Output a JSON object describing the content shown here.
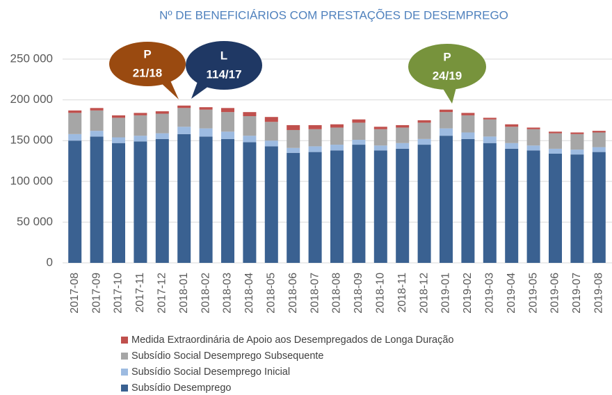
{
  "chart_data": {
    "type": "bar",
    "stacked": true,
    "title": "Nº DE BENEFICIÁRIOS COM PRESTAÇÕES DE DESEMPREGO",
    "categories": [
      "2017-08",
      "2017-09",
      "2017-10",
      "2017-11",
      "2017-12",
      "2018-01",
      "2018-02",
      "2018-03",
      "2018-04",
      "2018-05",
      "2018-06",
      "2018-07",
      "2018-08",
      "2018-09",
      "2018-10",
      "2018-11",
      "2018-12",
      "2019-01",
      "2019-02",
      "2019-03",
      "2019-04",
      "2019-05",
      "2019-06",
      "2019-07",
      "2019-08"
    ],
    "series": [
      {
        "name": "Subsídio Desemprego",
        "color": "#3a6191",
        "values": [
          150000,
          155000,
          147000,
          149000,
          152000,
          158000,
          155000,
          152000,
          148000,
          143000,
          135000,
          136000,
          138000,
          145000,
          138000,
          140000,
          145000,
          156000,
          152000,
          147000,
          140000,
          138000,
          134000,
          133000,
          136000
        ]
      },
      {
        "name": "Subsídio Social Desemprego Inicial",
        "color": "#9dbbe1",
        "values": [
          8000,
          7000,
          7000,
          7000,
          7000,
          9000,
          10000,
          9000,
          8000,
          7000,
          6000,
          7000,
          7000,
          6000,
          6000,
          7000,
          7000,
          9000,
          8000,
          8000,
          7000,
          6000,
          6000,
          6000,
          6000
        ]
      },
      {
        "name": "Subsídio Social Desemprego Subsequente",
        "color": "#a6a6a6",
        "values": [
          26000,
          25000,
          24000,
          25000,
          24000,
          23000,
          23000,
          24000,
          24000,
          23000,
          22000,
          21000,
          21000,
          21000,
          20000,
          19000,
          20000,
          20000,
          21000,
          21000,
          20000,
          20000,
          19000,
          19000,
          18000
        ]
      },
      {
        "name": "Medida Extraordinária de Apoio aos Desempregados de Longa Duração",
        "color": "#c0504d",
        "values": [
          3000,
          3000,
          3000,
          3000,
          3000,
          3000,
          3000,
          5000,
          5000,
          6000,
          6000,
          5000,
          4000,
          4000,
          3000,
          3000,
          3000,
          3000,
          3000,
          2000,
          3000,
          2000,
          2000,
          2000,
          2000
        ]
      }
    ],
    "ylim": [
      0,
      250000
    ],
    "yticks": [
      0,
      {
        "value": 50000,
        "label": "50 000"
      },
      {
        "value": 100000,
        "label": "100 000"
      },
      {
        "value": 150000,
        "label": "150 000"
      },
      {
        "value": 200000,
        "label": "200 000"
      },
      {
        "value": 250000,
        "label": "250 000"
      }
    ],
    "grid": true,
    "legend": "bottom",
    "annotations": [
      {
        "lines": [
          "P",
          "21/18"
        ],
        "color": "#9a4a10"
      },
      {
        "lines": [
          "L",
          "114/17"
        ],
        "color": "#1f3864"
      },
      {
        "lines": [
          "P",
          "24/19"
        ],
        "color": "#77933c"
      }
    ]
  }
}
